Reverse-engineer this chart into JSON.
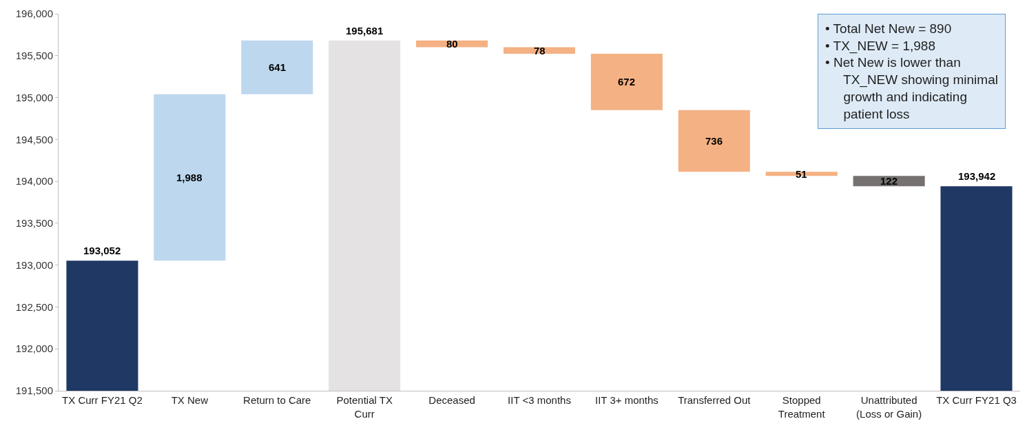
{
  "chart_data": {
    "type": "bar",
    "categories": [
      "TX Curr FY21 Q2",
      "TX New",
      "Return to Care",
      "Potential TX Curr",
      "Deceased",
      "IIT <3 months",
      "IIT 3+ months",
      "Transferred Out",
      "Stopped Treatment",
      "Unattributed (Loss or Gain)",
      "TX Curr FY21 Q3"
    ],
    "values": [
      193052,
      1988,
      641,
      195681,
      80,
      78,
      672,
      736,
      51,
      122,
      193942
    ],
    "base": [
      null,
      193052,
      195040,
      null,
      195601,
      195523,
      194851,
      194115,
      194064,
      193942,
      null
    ],
    "colors": [
      "#1f3864",
      "#bdd7ee",
      "#bdd7ee",
      "#e4e2e2",
      "#f4b183",
      "#f4b183",
      "#f4b183",
      "#f4b183",
      "#f4b183",
      "#767171",
      "#1f3864"
    ],
    "value_labels": [
      "193,052",
      "1,988",
      "641",
      "195,681",
      "80",
      "78",
      "672",
      "736",
      "51",
      "122",
      "193,942"
    ],
    "ylim": [
      191500,
      196000
    ],
    "yticks": [
      {
        "value": 191500,
        "label": "191,500"
      },
      {
        "value": 192000,
        "label": "192,000"
      },
      {
        "value": 192500,
        "label": "192,500"
      },
      {
        "value": 193000,
        "label": "193,000"
      },
      {
        "value": 193500,
        "label": "193,500"
      },
      {
        "value": 194000,
        "label": "194,000"
      },
      {
        "value": 194500,
        "label": "194,500"
      },
      {
        "value": 195000,
        "label": "195,000"
      },
      {
        "value": 195500,
        "label": "195,500"
      },
      {
        "value": 196000,
        "label": "196,000"
      }
    ],
    "annotations": [
      "• Total Net New = 890",
      "• TX_NEW = 1,988",
      "• Net New is lower than TX_NEW showing minimal growth and indicating patient loss"
    ]
  }
}
